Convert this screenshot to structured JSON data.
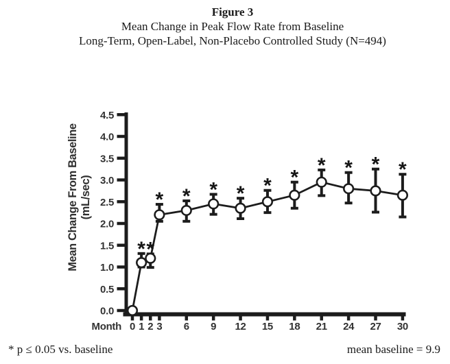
{
  "title": {
    "figure_label": "Figure 3",
    "line1": "Mean Change in Peak Flow Rate from Baseline",
    "line2": "Long-Term, Open-Label, Non-Placebo Controlled Study (N=494)"
  },
  "footnotes": {
    "left": "* p ≤ 0.05 vs. baseline",
    "right": "mean baseline = 9.9"
  },
  "chart_data": {
    "type": "line",
    "title": "Mean Change in Peak Flow Rate from Baseline",
    "xlabel": "Month",
    "ylabel": "Mean Change From Baseline (mL/sec)",
    "ylabel_line1": "Mean Change From Baseline",
    "ylabel_line2": "(mL/sec)",
    "xlim": [
      0,
      31
    ],
    "ylim": [
      0,
      4.5
    ],
    "x_ticks": [
      0,
      1,
      2,
      3,
      6,
      9,
      12,
      15,
      18,
      21,
      24,
      27,
      30
    ],
    "y_tick_labels": [
      "0.0",
      "0.5",
      "1.0",
      "1.5",
      "2.0",
      "2.5",
      "3.0",
      "3.5",
      "4.0",
      "4.5"
    ],
    "grid": false,
    "legend": false,
    "marker": "open-circle",
    "significance_marker": "*",
    "significance_note": "* p ≤ 0.05 vs. baseline",
    "mean_baseline": 9.9,
    "ink_color": "#1c1c1c",
    "tick_label_color": "#323232",
    "series": [
      {
        "name": "Mean change in peak flow rate (mL/sec)",
        "points": [
          {
            "month": 0,
            "value": 0.0,
            "err_up": 0,
            "err_down": 0,
            "significant": false
          },
          {
            "month": 1,
            "value": 1.1,
            "err_up": 0.21,
            "err_down": 0.1,
            "significant": true
          },
          {
            "month": 2,
            "value": 1.2,
            "err_up": 0.1,
            "err_down": 0.21,
            "significant": true
          },
          {
            "month": 3,
            "value": 2.2,
            "err_up": 0.24,
            "err_down": 0.15,
            "significant": true
          },
          {
            "month": 6,
            "value": 2.3,
            "err_up": 0.22,
            "err_down": 0.25,
            "significant": true
          },
          {
            "month": 9,
            "value": 2.45,
            "err_up": 0.22,
            "err_down": 0.24,
            "significant": true
          },
          {
            "month": 12,
            "value": 2.35,
            "err_up": 0.23,
            "err_down": 0.24,
            "significant": true
          },
          {
            "month": 15,
            "value": 2.5,
            "err_up": 0.26,
            "err_down": 0.25,
            "significant": true
          },
          {
            "month": 18,
            "value": 2.65,
            "err_up": 0.3,
            "err_down": 0.3,
            "significant": true
          },
          {
            "month": 21,
            "value": 2.95,
            "err_up": 0.28,
            "err_down": 0.31,
            "significant": true
          },
          {
            "month": 24,
            "value": 2.8,
            "err_up": 0.37,
            "err_down": 0.33,
            "significant": true
          },
          {
            "month": 27,
            "value": 2.75,
            "err_up": 0.5,
            "err_down": 0.49,
            "significant": true
          },
          {
            "month": 30,
            "value": 2.65,
            "err_up": 0.48,
            "err_down": 0.5,
            "significant": true
          }
        ]
      }
    ]
  }
}
